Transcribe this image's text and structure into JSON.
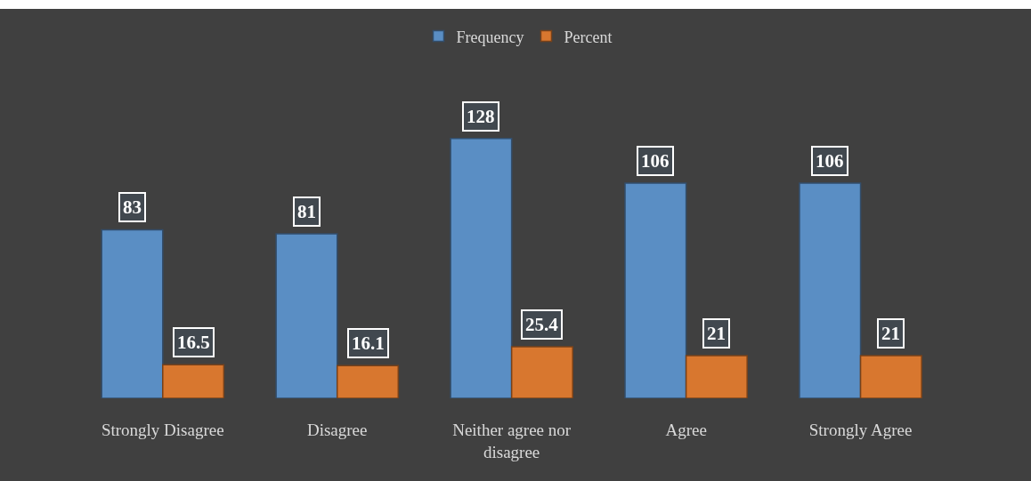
{
  "chart_data": {
    "type": "bar",
    "categories": [
      "Strongly Disagree",
      "Disagree",
      "Neither agree nor disagree",
      "Agree",
      "Strongly Agree"
    ],
    "series": [
      {
        "name": "Frequency",
        "color": "#5a8ec4",
        "values": [
          83,
          81,
          128,
          106,
          106
        ]
      },
      {
        "name": "Percent",
        "color": "#d8772f",
        "values": [
          16.5,
          16.1,
          25.4,
          21,
          21
        ]
      }
    ],
    "data_labels": true,
    "legend": "top"
  }
}
